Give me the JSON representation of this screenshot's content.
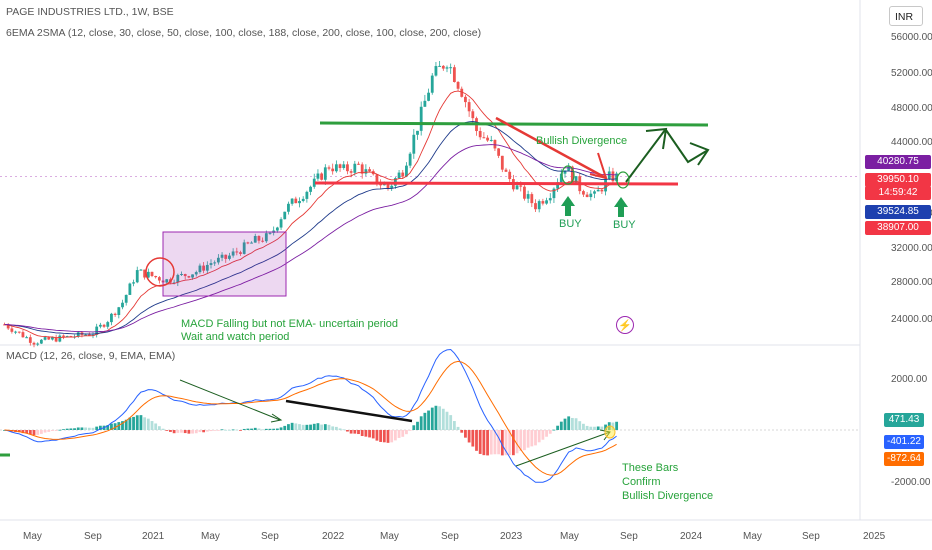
{
  "header": {
    "symbol_line": "PAGE INDUSTRIES LTD., 1W, BSE",
    "indicator_line": "6EMA 2SMA (12, close, 30, close, 50, close, 100, close, 188, close, 200, close, 100, close, 200, close)",
    "currency": "INR"
  },
  "price_pane": {
    "axis_ticks": [
      "56000.00",
      "52000.00",
      "48000.00",
      "44000.00",
      "36000.00",
      "32000.00",
      "28000.00",
      "24000.00"
    ],
    "tags": [
      {
        "text": "40280.75",
        "color": "#7b1fa2"
      },
      {
        "text": "39950.10",
        "color": "#f23645"
      },
      {
        "text": "14:59:42",
        "color": "#f23645"
      },
      {
        "text": "39524.85",
        "color": "#1e40af"
      },
      {
        "text": "38907.00",
        "color": "#f23645"
      }
    ]
  },
  "macd_pane": {
    "title": "MACD (12, 26, close, 9, EMA, EMA)",
    "axis_ticks": [
      "2000.00",
      "0.00",
      "-2000.00"
    ],
    "tags": [
      {
        "text": "471.43",
        "color": "#26a69a"
      },
      {
        "text": "-401.22",
        "color": "#2962ff"
      },
      {
        "text": "-872.64",
        "color": "#ff6d00"
      }
    ]
  },
  "time_axis": [
    "May",
    "Sep",
    "2021",
    "May",
    "Sep",
    "2022",
    "May",
    "Sep",
    "2023",
    "May",
    "Sep",
    "2024",
    "May",
    "Sep",
    "2025"
  ],
  "annotations": {
    "bullish_divergence": "Bullish Divergence",
    "buy_1": "BUY",
    "buy_2": "BUY",
    "macd_note_1": "MACD Falling but not EMA- uncertain period",
    "macd_note_2": "Wait and watch period",
    "bars_note": [
      "These Bars",
      "Confirm",
      "Bullish Divergence"
    ]
  },
  "colors": {
    "up": "#26a69a",
    "down": "#ef5350",
    "macd_line": "#2962ff",
    "signal_line": "#ff6d00",
    "support_line": "#f23645",
    "resistance_line": "#2e9e3e",
    "arrow": "#1b5e20",
    "box": "#9c27b0"
  },
  "chart_data": [
    {
      "type": "candlestick",
      "title": "PAGE INDUSTRIES LTD., 1W, BSE",
      "ylim": [
        22500,
        57500
      ],
      "x_range": [
        "2020-04",
        "2025-03"
      ],
      "series": [
        {
          "name": "Close (weekly, approx.)",
          "x": [
            "2020-05",
            "2020-09",
            "2020-12",
            "2021-03",
            "2021-05",
            "2021-08",
            "2021-10",
            "2021-12",
            "2022-03",
            "2022-05",
            "2022-08",
            "2022-09",
            "2022-11",
            "2023-01",
            "2023-03",
            "2023-05",
            "2023-07",
            "2023-08"
          ],
          "values": [
            21500,
            22500,
            30000,
            29000,
            30500,
            33500,
            37500,
            41000,
            41500,
            40000,
            51000,
            53000,
            45000,
            39000,
            37000,
            41000,
            38000,
            40280
          ]
        }
      ]
    },
    {
      "type": "line",
      "title": "MACD (12, 26, close, 9, EMA, EMA)",
      "ylim": [
        -3000,
        3000
      ],
      "series": [
        {
          "name": "MACD",
          "last": -401.22
        },
        {
          "name": "Signal",
          "last": -872.64
        },
        {
          "name": "Histogram",
          "last": 471.43
        }
      ]
    }
  ]
}
